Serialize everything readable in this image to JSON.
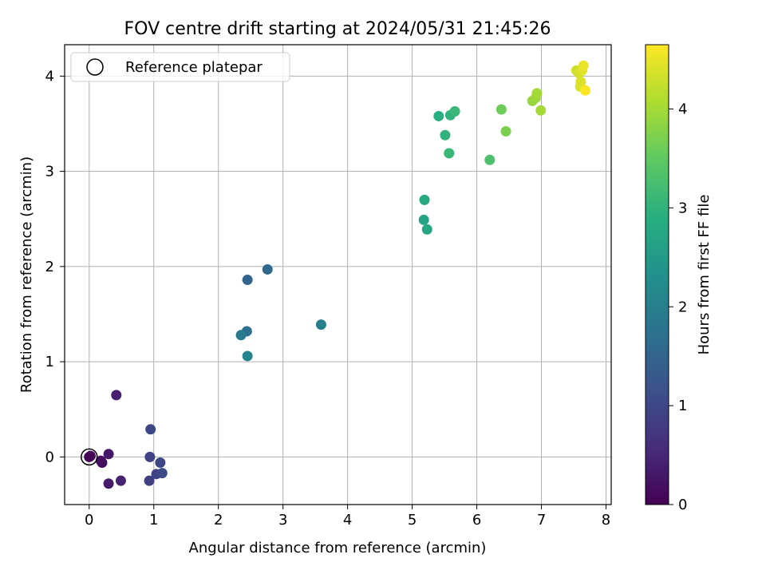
{
  "chart_data": {
    "type": "scatter",
    "title": "FOV centre drift starting at 2024/05/31 21:45:26",
    "xlabel": "Angular distance from reference (arcmin)",
    "ylabel": "Rotation from reference (arcmin)",
    "xlim": [
      -0.38,
      8.08
    ],
    "ylim": [
      -0.5,
      4.33
    ],
    "xticks": [
      0,
      1,
      2,
      3,
      4,
      5,
      6,
      7,
      8
    ],
    "yticks": [
      0,
      1,
      2,
      3,
      4
    ],
    "grid": true,
    "legend": {
      "position": "top-left",
      "entries": [
        "Reference platepar"
      ]
    },
    "reference_point": {
      "x": 0,
      "y": 0
    },
    "colorbar": {
      "label": "Hours from first FF file",
      "range": [
        0,
        4.65
      ],
      "ticks": [
        0,
        1,
        2,
        3,
        4
      ],
      "colormap": "viridis"
    },
    "points": [
      {
        "x": 0.0,
        "y": 0.0,
        "c": 0.0
      },
      {
        "x": 0.02,
        "y": 0.01,
        "c": 0.05
      },
      {
        "x": 0.2,
        "y": -0.06,
        "c": 0.15
      },
      {
        "x": 0.18,
        "y": -0.04,
        "c": 0.2
      },
      {
        "x": 0.3,
        "y": 0.03,
        "c": 0.3
      },
      {
        "x": 0.3,
        "y": -0.28,
        "c": 0.35
      },
      {
        "x": 0.42,
        "y": 0.65,
        "c": 0.4
      },
      {
        "x": 0.49,
        "y": -0.25,
        "c": 0.45
      },
      {
        "x": 0.95,
        "y": 0.29,
        "c": 1.0
      },
      {
        "x": 0.94,
        "y": 0.0,
        "c": 0.95
      },
      {
        "x": 0.93,
        "y": -0.25,
        "c": 0.9
      },
      {
        "x": 1.04,
        "y": -0.18,
        "c": 0.95
      },
      {
        "x": 1.1,
        "y": -0.06,
        "c": 1.0
      },
      {
        "x": 1.13,
        "y": -0.17,
        "c": 1.05
      },
      {
        "x": 2.45,
        "y": 1.86,
        "c": 1.5
      },
      {
        "x": 2.76,
        "y": 1.97,
        "c": 1.6
      },
      {
        "x": 2.44,
        "y": 1.32,
        "c": 1.7
      },
      {
        "x": 2.35,
        "y": 1.28,
        "c": 1.9
      },
      {
        "x": 2.45,
        "y": 1.06,
        "c": 2.1
      },
      {
        "x": 3.59,
        "y": 1.39,
        "c": 2.0
      },
      {
        "x": 5.19,
        "y": 2.7,
        "c": 2.8
      },
      {
        "x": 5.18,
        "y": 2.49,
        "c": 2.7
      },
      {
        "x": 5.23,
        "y": 2.39,
        "c": 2.75
      },
      {
        "x": 5.41,
        "y": 3.58,
        "c": 2.9
      },
      {
        "x": 5.59,
        "y": 3.59,
        "c": 3.0
      },
      {
        "x": 5.66,
        "y": 3.63,
        "c": 3.1
      },
      {
        "x": 5.51,
        "y": 3.38,
        "c": 3.0
      },
      {
        "x": 5.57,
        "y": 3.19,
        "c": 3.1
      },
      {
        "x": 6.2,
        "y": 3.12,
        "c": 3.3
      },
      {
        "x": 6.38,
        "y": 3.65,
        "c": 3.6
      },
      {
        "x": 6.45,
        "y": 3.42,
        "c": 3.7
      },
      {
        "x": 6.86,
        "y": 3.74,
        "c": 3.9
      },
      {
        "x": 6.91,
        "y": 3.77,
        "c": 3.95
      },
      {
        "x": 6.93,
        "y": 3.82,
        "c": 4.0
      },
      {
        "x": 6.99,
        "y": 3.64,
        "c": 4.0
      },
      {
        "x": 7.54,
        "y": 4.06,
        "c": 4.3
      },
      {
        "x": 7.58,
        "y": 4.03,
        "c": 4.35
      },
      {
        "x": 7.61,
        "y": 3.94,
        "c": 4.4
      },
      {
        "x": 7.6,
        "y": 3.89,
        "c": 4.4
      },
      {
        "x": 7.63,
        "y": 4.06,
        "c": 4.45
      },
      {
        "x": 7.65,
        "y": 4.11,
        "c": 4.5
      },
      {
        "x": 7.68,
        "y": 3.85,
        "c": 4.65
      }
    ]
  }
}
